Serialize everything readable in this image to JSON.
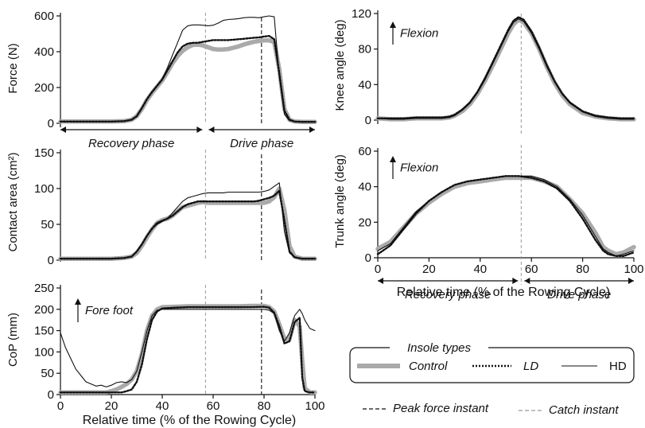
{
  "figure": {
    "legend": {
      "title": "Insole types",
      "entries": [
        {
          "label": "Control",
          "style": "thick-gray"
        },
        {
          "label": "LD",
          "style": "dotted"
        },
        {
          "label": "HD",
          "style": "thin-solid"
        }
      ],
      "instants": [
        {
          "label": "Peak force instant",
          "style": "dashed-black"
        },
        {
          "label": "Catch instant",
          "style": "dashed-gray"
        }
      ]
    },
    "colors": {
      "control": "#aaaaaa",
      "ld": "#111111",
      "hd": "#111111",
      "peak": "#111111",
      "catch": "#999999"
    }
  },
  "chart_data": [
    {
      "id": "force",
      "type": "line",
      "ylabel": "Force (N)",
      "xlabel": "",
      "ylim": [
        0,
        600
      ],
      "yticks": [
        "0",
        "200",
        "400",
        "600"
      ],
      "xlim": [
        0,
        100
      ],
      "xticks": [],
      "x": [
        0,
        10,
        20,
        25,
        28,
        30,
        32,
        34,
        36,
        38,
        40,
        42,
        44,
        46,
        48,
        50,
        52,
        54,
        56,
        58,
        60,
        62,
        64,
        66,
        68,
        70,
        72,
        74,
        76,
        78,
        80,
        82,
        84,
        86,
        88,
        90,
        92,
        95,
        100
      ],
      "series": [
        {
          "name": "Control",
          "values": [
            10,
            10,
            10,
            12,
            20,
            40,
            80,
            130,
            170,
            205,
            240,
            285,
            335,
            375,
            405,
            425,
            438,
            440,
            435,
            425,
            415,
            412,
            413,
            415,
            422,
            430,
            440,
            448,
            455,
            460,
            463,
            463,
            455,
            300,
            80,
            20,
            10,
            8,
            8
          ]
        },
        {
          "name": "LD",
          "values": [
            10,
            10,
            10,
            12,
            20,
            40,
            85,
            135,
            175,
            210,
            245,
            295,
            345,
            395,
            430,
            445,
            450,
            450,
            455,
            460,
            465,
            465,
            465,
            465,
            467,
            470,
            472,
            475,
            478,
            480,
            485,
            488,
            470,
            280,
            70,
            20,
            10,
            8,
            8
          ]
        },
        {
          "name": "HD",
          "values": [
            10,
            10,
            10,
            12,
            20,
            40,
            85,
            135,
            175,
            210,
            250,
            310,
            380,
            450,
            520,
            545,
            550,
            550,
            548,
            545,
            548,
            560,
            575,
            580,
            582,
            585,
            590,
            592,
            592,
            590,
            595,
            600,
            595,
            260,
            50,
            15,
            10,
            8,
            8
          ]
        }
      ],
      "annotations": {
        "arrows": [
          {
            "label": "Recovery phase",
            "from": 0,
            "to": 57
          },
          {
            "label": "Drive phase",
            "from": 57,
            "to": 100
          }
        ]
      }
    },
    {
      "id": "contact",
      "type": "line",
      "ylabel": "Contact area (cm²)",
      "xlabel": "",
      "ylim": [
        0,
        150
      ],
      "yticks": [
        "0",
        "50",
        "100",
        "150"
      ],
      "xlim": [
        0,
        100
      ],
      "xticks": [],
      "x": [
        0,
        10,
        20,
        25,
        28,
        30,
        32,
        34,
        36,
        38,
        40,
        42,
        44,
        46,
        48,
        50,
        52,
        54,
        56,
        58,
        60,
        62,
        64,
        66,
        68,
        70,
        72,
        74,
        76,
        78,
        80,
        82,
        84,
        86,
        88,
        90,
        92,
        95,
        100
      ],
      "series": [
        {
          "name": "Control",
          "values": [
            2,
            2,
            2,
            3,
            5,
            10,
            20,
            32,
            43,
            52,
            56,
            58,
            62,
            68,
            74,
            76,
            78,
            80,
            81,
            80,
            80,
            80,
            80,
            80,
            80,
            80,
            80,
            80,
            80,
            80,
            80,
            82,
            88,
            100,
            70,
            20,
            5,
            2,
            2
          ]
        },
        {
          "name": "LD",
          "values": [
            2,
            2,
            2,
            3,
            5,
            12,
            22,
            34,
            44,
            52,
            55,
            58,
            62,
            68,
            74,
            78,
            80,
            82,
            82,
            82,
            82,
            82,
            82,
            82,
            82,
            82,
            82,
            82,
            82,
            83,
            85,
            87,
            90,
            97,
            55,
            12,
            4,
            2,
            2
          ]
        },
        {
          "name": "HD",
          "values": [
            2,
            2,
            2,
            3,
            5,
            12,
            22,
            34,
            44,
            50,
            54,
            58,
            66,
            74,
            82,
            87,
            89,
            91,
            93,
            94,
            94,
            94,
            94,
            95,
            95,
            95,
            95,
            95,
            95,
            95,
            96,
            98,
            103,
            108,
            40,
            10,
            4,
            2,
            2
          ]
        }
      ]
    },
    {
      "id": "cop",
      "type": "line",
      "ylabel": "CoP (mm)",
      "xlabel": "Relative time (% of the Rowing Cycle)",
      "ylim": [
        0,
        250
      ],
      "yticks": [
        "0",
        "50",
        "100",
        "150",
        "200",
        "250"
      ],
      "xlim": [
        0,
        100
      ],
      "xticks": [
        "0",
        "20",
        "40",
        "60",
        "80",
        "100"
      ],
      "x": [
        0,
        2,
        4,
        6,
        8,
        10,
        12,
        14,
        16,
        18,
        20,
        22,
        24,
        26,
        28,
        30,
        32,
        34,
        36,
        38,
        40,
        45,
        50,
        55,
        60,
        65,
        70,
        75,
        80,
        82,
        84,
        86,
        88,
        90,
        92,
        94,
        95,
        96,
        98,
        100
      ],
      "series": [
        {
          "name": "Control",
          "values": [
            5,
            5,
            5,
            5,
            5,
            5,
            5,
            5,
            5,
            5,
            8,
            12,
            18,
            25,
            35,
            55,
            95,
            150,
            185,
            200,
            205,
            206,
            207,
            207,
            207,
            207,
            207,
            208,
            208,
            205,
            195,
            165,
            130,
            130,
            175,
            160,
            80,
            15,
            5,
            5
          ]
        },
        {
          "name": "LD",
          "values": [
            5,
            5,
            5,
            5,
            5,
            5,
            5,
            5,
            5,
            5,
            5,
            5,
            5,
            8,
            12,
            30,
            70,
            130,
            175,
            195,
            202,
            204,
            205,
            205,
            205,
            205,
            205,
            205,
            206,
            204,
            192,
            160,
            120,
            125,
            170,
            180,
            40,
            8,
            5,
            5
          ]
        },
        {
          "name": "HD",
          "values": [
            145,
            110,
            85,
            60,
            45,
            30,
            25,
            20,
            22,
            18,
            22,
            28,
            30,
            28,
            35,
            55,
            100,
            150,
            185,
            198,
            200,
            200,
            200,
            200,
            200,
            200,
            200,
            200,
            200,
            198,
            190,
            150,
            125,
            145,
            185,
            200,
            190,
            175,
            155,
            150
          ]
        }
      ],
      "annotations": {
        "label": "Fore foot"
      }
    },
    {
      "id": "knee",
      "type": "line",
      "ylabel": "Knee angle (deg)",
      "xlabel": "",
      "ylim": [
        0,
        120
      ],
      "yticks": [
        "0",
        "40",
        "80",
        "120"
      ],
      "xlim": [
        0,
        100
      ],
      "xticks": [],
      "x": [
        0,
        5,
        10,
        15,
        20,
        25,
        28,
        30,
        33,
        36,
        39,
        42,
        45,
        48,
        51,
        53,
        55,
        57,
        60,
        63,
        66,
        69,
        72,
        75,
        80,
        85,
        90,
        95,
        100
      ],
      "series": [
        {
          "name": "Control",
          "values": [
            2,
            1,
            1,
            2,
            2,
            2,
            3,
            5,
            10,
            18,
            30,
            45,
            62,
            80,
            98,
            108,
            113,
            110,
            98,
            80,
            60,
            42,
            28,
            18,
            8,
            4,
            2,
            1,
            1
          ]
        },
        {
          "name": "LD",
          "values": [
            2,
            2,
            2,
            3,
            3,
            3,
            4,
            6,
            12,
            20,
            32,
            48,
            66,
            84,
            102,
            112,
            116,
            113,
            100,
            82,
            62,
            44,
            30,
            20,
            10,
            5,
            3,
            2,
            2
          ]
        },
        {
          "name": "HD",
          "values": [
            2,
            1,
            1,
            2,
            2,
            2,
            3,
            5,
            11,
            19,
            31,
            46,
            64,
            82,
            100,
            110,
            114,
            111,
            98,
            80,
            60,
            43,
            29,
            19,
            9,
            4,
            2,
            1,
            1
          ]
        }
      ],
      "annotations": {
        "label": "Flexion"
      }
    },
    {
      "id": "trunk",
      "type": "line",
      "ylabel": "Trunk angle (deg)",
      "xlabel": "Relative time (% of the Rowing Cycle)",
      "ylim": [
        0,
        60
      ],
      "yticks": [
        "0",
        "20",
        "40",
        "60"
      ],
      "xlim": [
        0,
        100
      ],
      "xticks": [
        "0",
        "20",
        "40",
        "60",
        "80",
        "100"
      ],
      "x": [
        0,
        5,
        10,
        15,
        20,
        25,
        30,
        35,
        40,
        45,
        50,
        55,
        60,
        65,
        70,
        75,
        80,
        85,
        88,
        90,
        93,
        96,
        100
      ],
      "series": [
        {
          "name": "Control",
          "values": [
            5,
            9,
            17,
            25,
            31,
            36,
            40,
            42,
            43,
            44,
            45,
            45,
            45,
            43,
            40,
            33,
            25,
            14,
            6,
            4,
            2,
            3,
            6
          ]
        },
        {
          "name": "LD",
          "values": [
            2,
            7,
            16,
            25,
            32,
            37,
            41,
            43,
            44,
            45,
            46,
            46,
            45,
            43,
            39,
            32,
            22,
            10,
            4,
            2,
            1,
            1,
            3
          ]
        },
        {
          "name": "HD",
          "values": [
            4,
            8,
            17,
            26,
            32,
            37,
            41,
            43,
            44,
            45,
            46,
            46,
            46,
            44,
            40,
            33,
            24,
            12,
            5,
            3,
            1,
            2,
            4
          ]
        }
      ],
      "annotations": {
        "label": "Flexion",
        "arrows": [
          {
            "label": "Recovery phase",
            "from": 0,
            "to": 56
          },
          {
            "label": "Drive phase",
            "from": 56,
            "to": 100
          }
        ]
      }
    }
  ],
  "instants": {
    "peak_force": 79,
    "catch": 57
  }
}
